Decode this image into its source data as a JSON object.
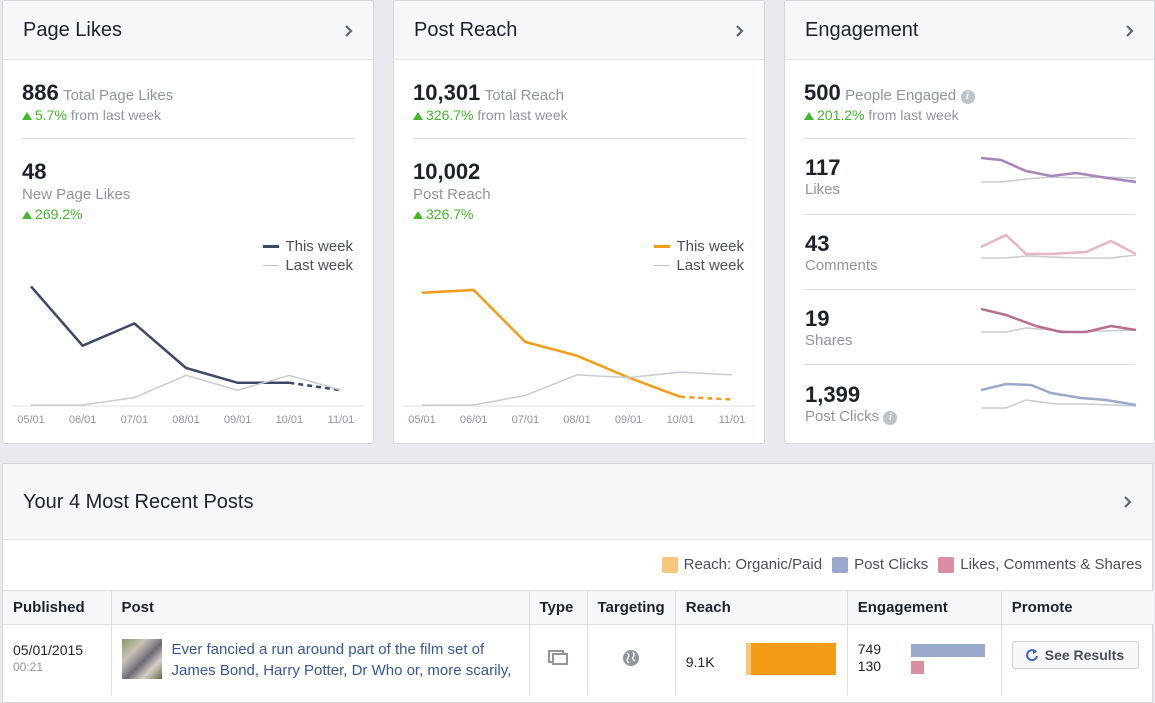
{
  "colors": {
    "likes_this_week": "#3b4866",
    "reach_this_week": "#f49c18",
    "last_week": "#c8cbcf",
    "green": "#42b72a",
    "likes_spark": "#a784b8",
    "comments_spark": "#e6b5c4",
    "shares_spark": "#b86e8f",
    "clicks_spark": "#9aa8cc"
  },
  "page_likes": {
    "title": "Page Likes",
    "total_value": "886",
    "total_label": "Total Page Likes",
    "total_change": "5.7%",
    "total_change_suffix": "from last week",
    "new_value": "48",
    "new_label": "New Page Likes",
    "new_change": "269.2%",
    "legend_this": "This week",
    "legend_last": "Last week"
  },
  "post_reach": {
    "title": "Post Reach",
    "total_value": "10,301",
    "total_label": "Total Reach",
    "total_change": "326.7%",
    "total_change_suffix": "from last week",
    "post_value": "10,002",
    "post_label": "Post Reach",
    "post_change": "326.7%",
    "legend_this": "This week",
    "legend_last": "Last week"
  },
  "engagement": {
    "title": "Engagement",
    "total_value": "500",
    "total_label": "People Engaged",
    "total_change": "201.2%",
    "total_change_suffix": "from last week",
    "rows": [
      {
        "value": "117",
        "label": "Likes"
      },
      {
        "value": "43",
        "label": "Comments"
      },
      {
        "value": "19",
        "label": "Shares"
      },
      {
        "value": "1,399",
        "label": "Post Clicks"
      }
    ]
  },
  "chart_data": [
    {
      "type": "line",
      "x": [
        "05/01",
        "06/01",
        "07/01",
        "08/01",
        "09/01",
        "10/01",
        "11/01"
      ],
      "series": [
        {
          "name": "This week",
          "values": [
            16,
            8,
            11,
            5,
            3,
            3,
            2
          ]
        },
        {
          "name": "Last week",
          "values": [
            0,
            0,
            1,
            4,
            2,
            4,
            2
          ]
        }
      ]
    },
    {
      "type": "line",
      "x": [
        "05/01",
        "06/01",
        "07/01",
        "08/01",
        "09/01",
        "10/01",
        "11/01"
      ],
      "series": [
        {
          "name": "This week",
          "values": [
            4100,
            4200,
            2300,
            1800,
            1000,
            300,
            200
          ]
        },
        {
          "name": "Last week",
          "values": [
            0,
            0,
            350,
            1100,
            1000,
            1200,
            1100
          ]
        }
      ]
    }
  ],
  "recent_posts": {
    "title": "Your 4 Most Recent Posts",
    "legend": [
      "Reach: Organic/Paid",
      "Post Clicks",
      "Likes, Comments & Shares"
    ],
    "columns": [
      "Published",
      "Post",
      "Type",
      "Targeting",
      "Reach",
      "Engagement",
      "Promote"
    ],
    "rows": [
      {
        "date": "05/01/2015",
        "time": "00:21",
        "text_line1": "Ever fancied a run around part of the film set of",
        "text_line2": "James Bond, Harry Potter, Dr Who or, more scarily,",
        "reach": "9.1K",
        "clicks": "749",
        "lcs": "130",
        "promote": "See Results"
      }
    ]
  }
}
